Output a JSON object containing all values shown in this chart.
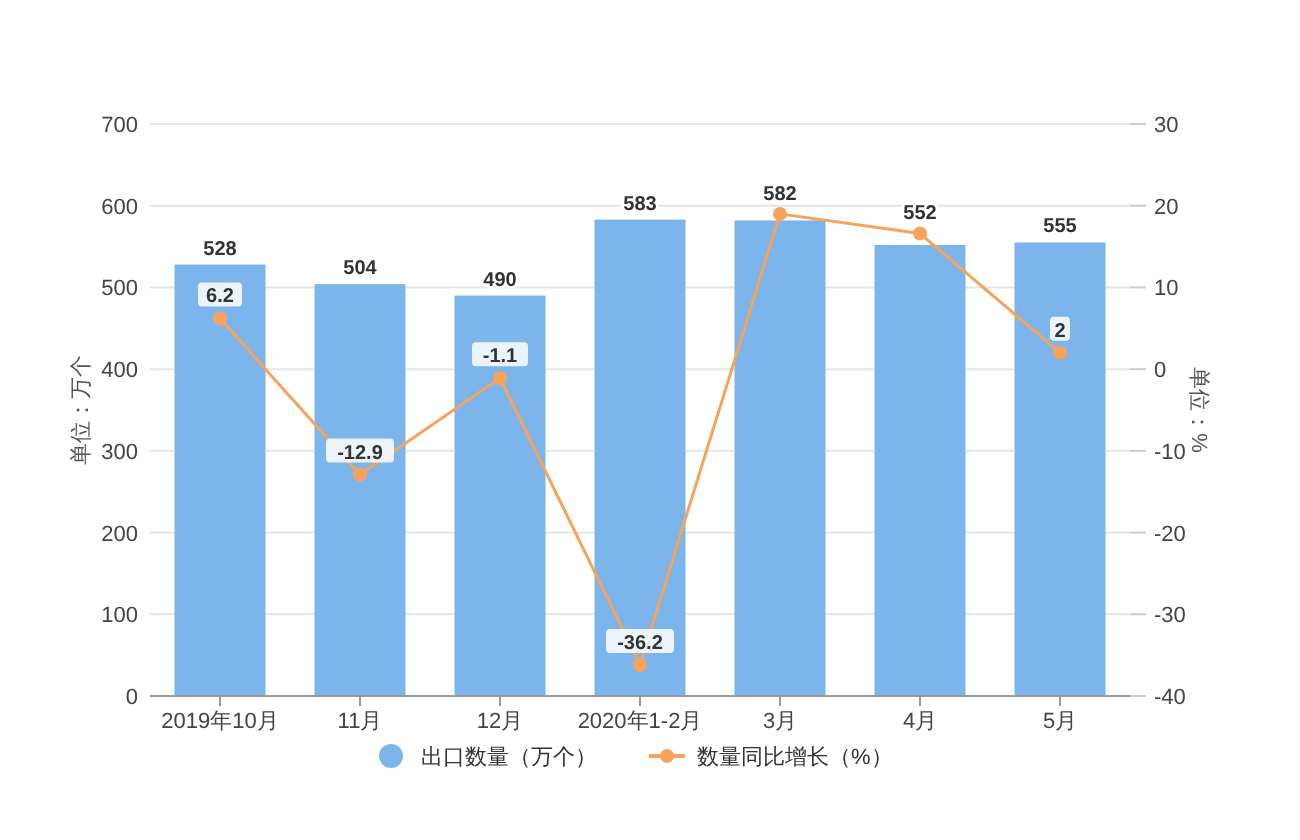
{
  "chart_data": {
    "type": "bar",
    "categories": [
      "2019年10月",
      "11月",
      "12月",
      "2020年1-2月",
      "3月",
      "4月",
      "5月"
    ],
    "ylabel": "单位：万个",
    "y2label": "单位：%",
    "ylim": [
      0,
      700
    ],
    "yticks": [
      0,
      100,
      200,
      300,
      400,
      500,
      600,
      700
    ],
    "y2lim": [
      -40,
      30
    ],
    "y2ticks": [
      -40,
      -30,
      -20,
      -10,
      0,
      10,
      20,
      30
    ],
    "grid": "y",
    "legend": "bottom",
    "marker": "circle",
    "series": [
      {
        "name": "出口数量（万个）",
        "color": "#7cb5ec",
        "values": [
          528,
          504,
          490,
          583,
          582,
          552,
          555
        ],
        "value_labels": [
          "528",
          "504",
          "490",
          "583",
          "582",
          "552",
          "555"
        ]
      },
      {
        "name": "数量同比增长（%）",
        "type": "line",
        "axis": "y2",
        "color": "#f7a35c",
        "values": [
          6.2,
          -12.9,
          -1.1,
          -36.2,
          19,
          16.6,
          2
        ],
        "value_labels": [
          "6.2",
          "-12.9",
          "-1.1",
          "-36.2",
          null,
          null,
          "2"
        ]
      }
    ]
  }
}
